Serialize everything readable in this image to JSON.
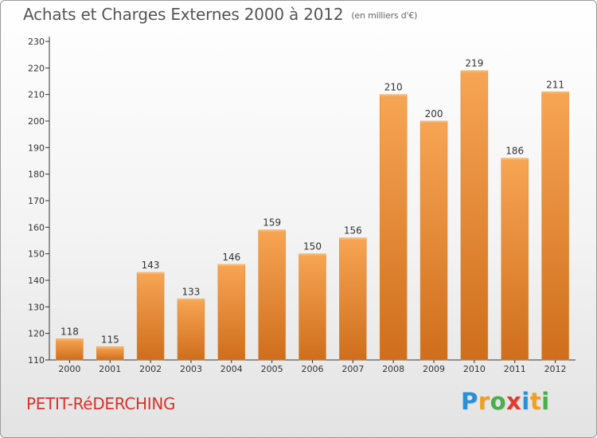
{
  "title": "Achats et Charges Externes 2000 à 2012",
  "unit_label": "(en milliers d'€)",
  "place": "PETIT-RéDERCHING",
  "logo": {
    "letters": [
      "P",
      "r",
      "o",
      "x",
      "i",
      "t",
      "i"
    ],
    "colors": [
      "#2b8fd8",
      "#f0a020",
      "#46b04a",
      "#e23b2e",
      "#2b8fd8",
      "#f0a020",
      "#46b04a"
    ]
  },
  "colors": {
    "bar_top": "#f7a554",
    "bar_bottom": "#cf6e1c",
    "title": "#555555",
    "place": "#d6322b"
  },
  "chart_data": {
    "type": "bar",
    "title": "Achats et Charges Externes 2000 à 2012",
    "ylabel": "",
    "xlabel": "",
    "categories": [
      "2000",
      "2001",
      "2002",
      "2003",
      "2004",
      "2005",
      "2006",
      "2007",
      "2008",
      "2009",
      "2010",
      "2011",
      "2012"
    ],
    "values": [
      118,
      115,
      143,
      133,
      146,
      159,
      150,
      156,
      210,
      200,
      219,
      186,
      211
    ],
    "ylim": [
      110,
      230
    ],
    "yticks": [
      110,
      120,
      130,
      140,
      150,
      160,
      170,
      180,
      190,
      200,
      210,
      220,
      230
    ],
    "grid": false,
    "legend": "none"
  }
}
